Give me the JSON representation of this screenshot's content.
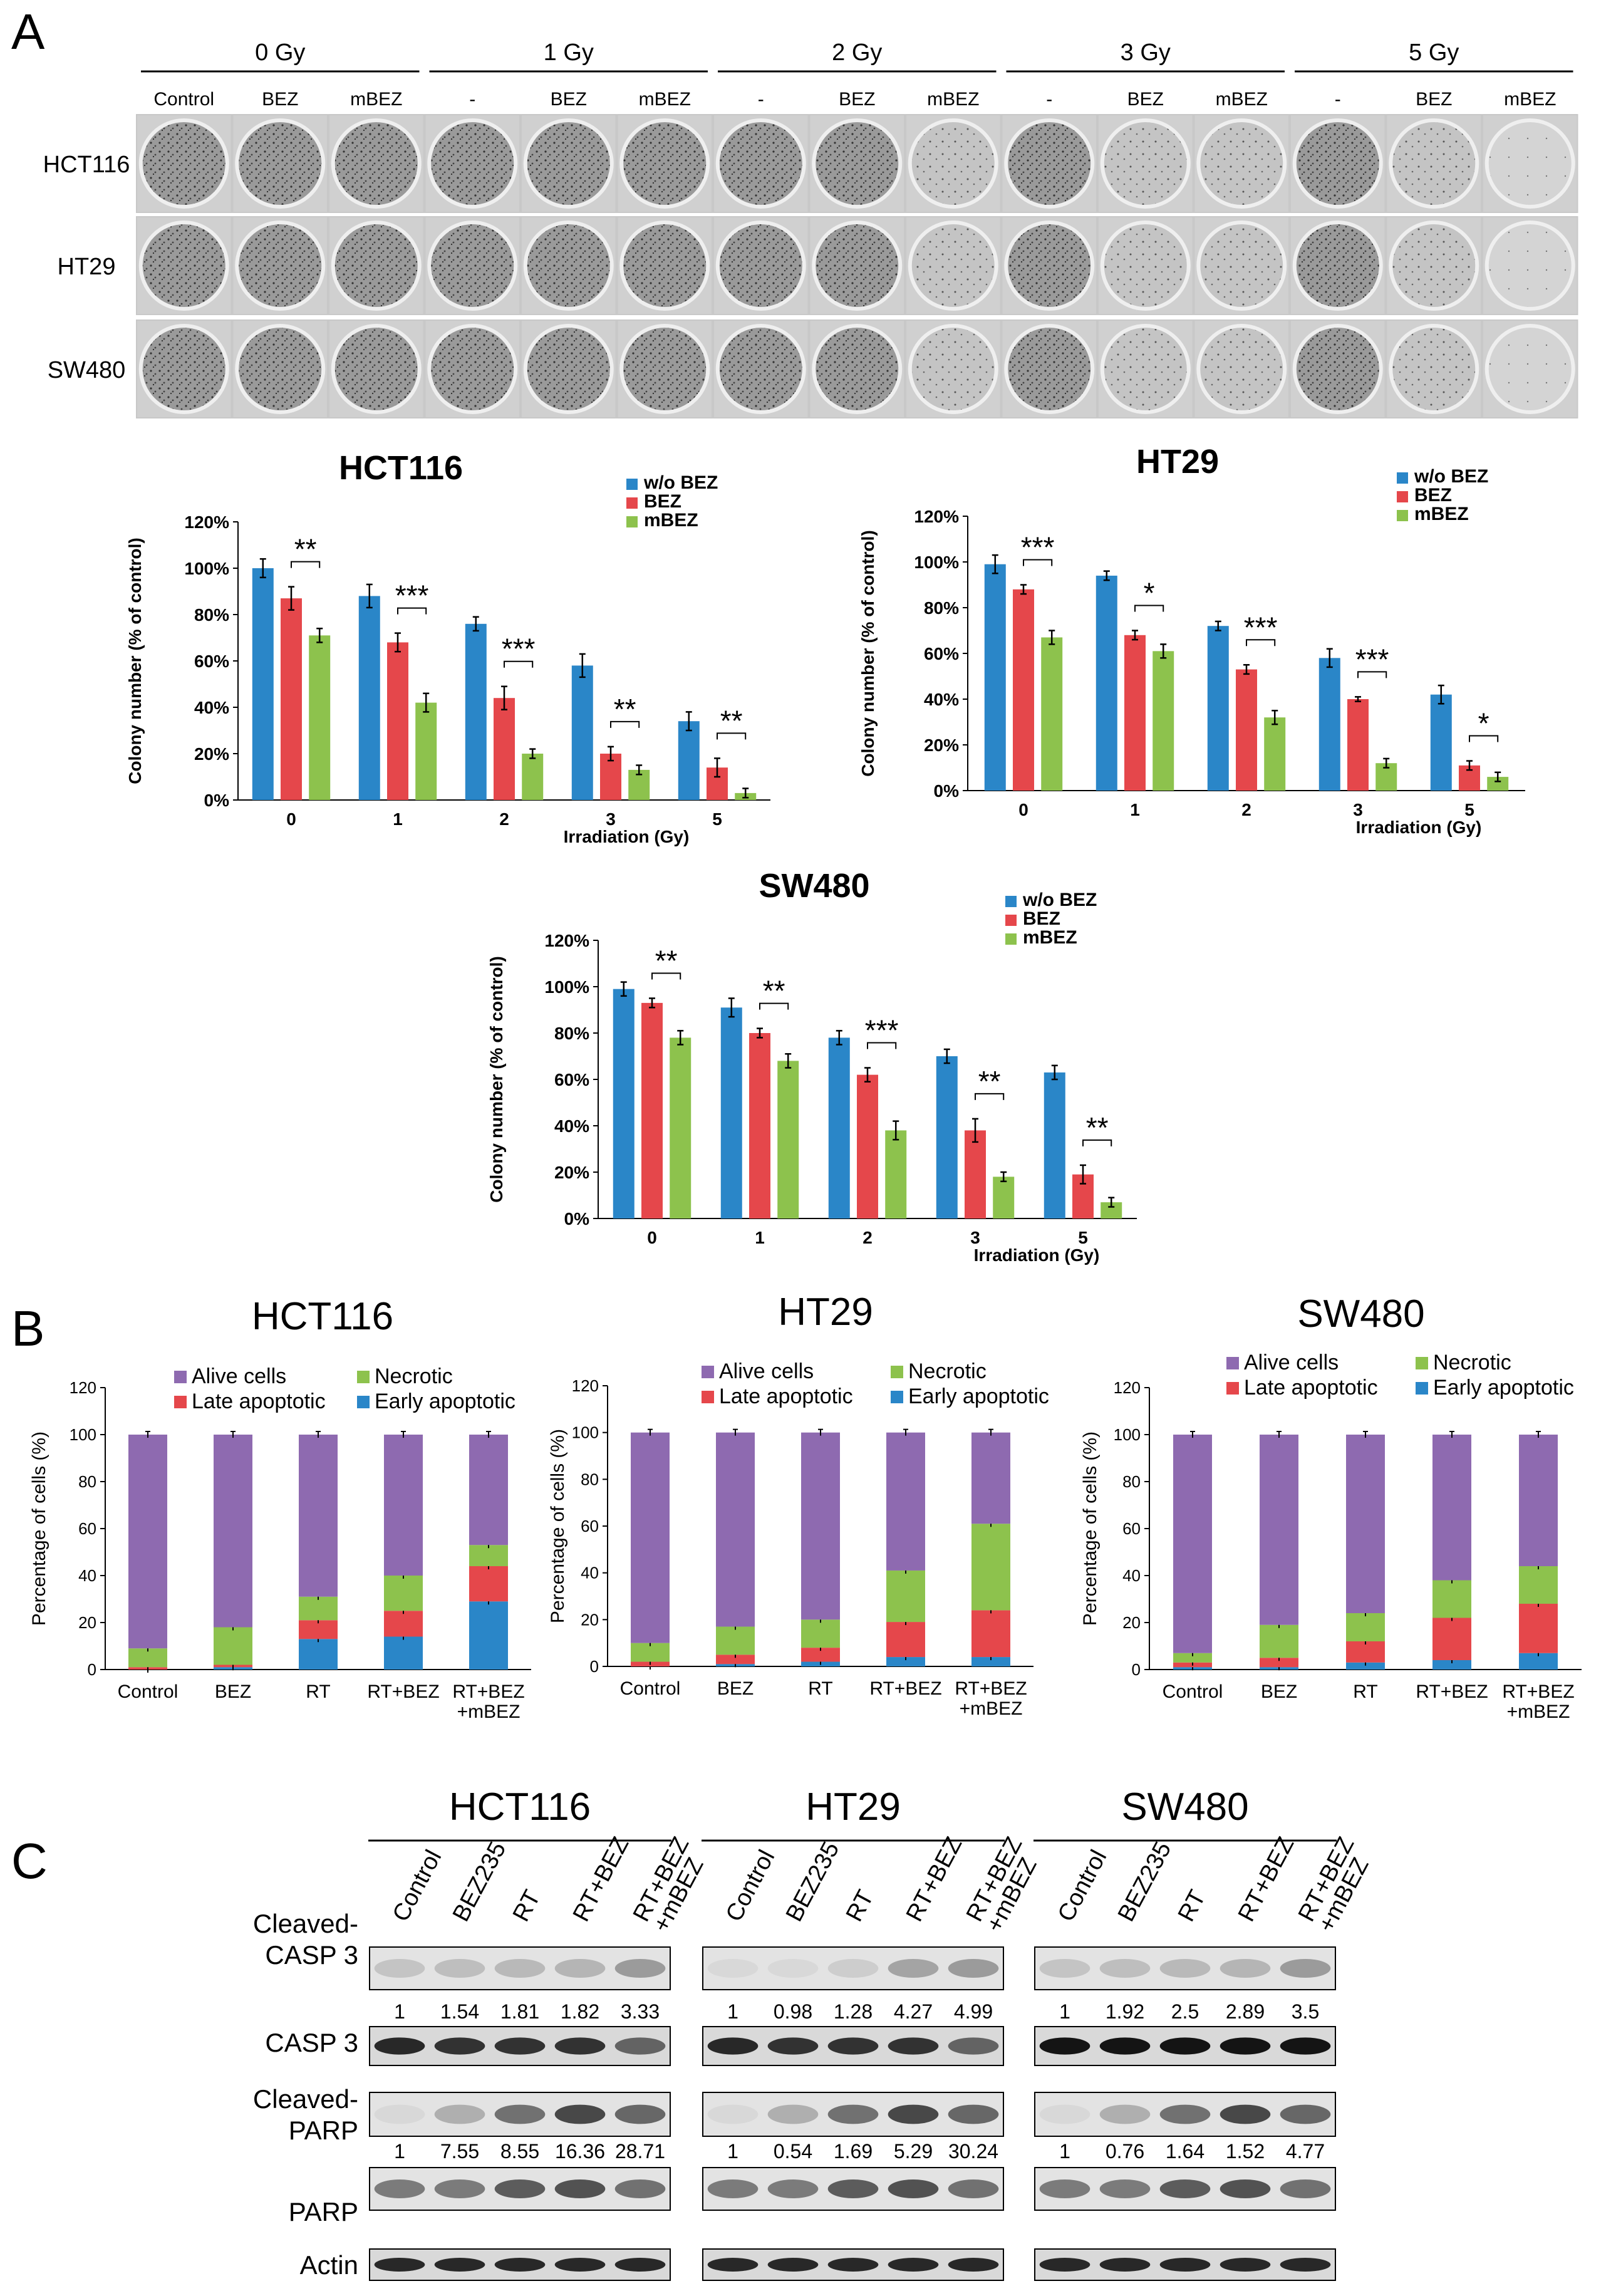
{
  "panels": {
    "a": "A",
    "b": "B",
    "c": "C"
  },
  "colors": {
    "blue": "#2a86c8",
    "red": "#e5474b",
    "green": "#8dc24d",
    "purple": "#8e6ab0",
    "dish_dark": "#5a5a5a",
    "dish_light": "#d8d8d8"
  },
  "panel_a": {
    "dose_groups": [
      "0 Gy",
      "1 Gy",
      "2 Gy",
      "3 Gy",
      "5 Gy"
    ],
    "treatments": [
      "Control",
      "BEZ",
      "mBEZ",
      "-",
      "BEZ",
      "mBEZ",
      "-",
      "BEZ",
      "mBEZ",
      "-",
      "BEZ",
      "mBEZ",
      "-",
      "BEZ",
      "mBEZ"
    ],
    "cell_lines": [
      "HCT116",
      "HT29",
      "SW480"
    ]
  },
  "chart_data": [
    {
      "id": "a1",
      "type": "bar",
      "title": "HCT116",
      "xlabel": "Irradiation (Gy)",
      "ylabel": "Colony number (% of control)",
      "categories": [
        "0",
        "1",
        "2",
        "3",
        "5"
      ],
      "yticks": [
        "0%",
        "20%",
        "40%",
        "60%",
        "80%",
        "100%",
        "120%"
      ],
      "ylim": [
        0,
        120
      ],
      "series": [
        {
          "name": "w/o BEZ",
          "color": "#2a86c8",
          "values": [
            100,
            88,
            76,
            58,
            34
          ],
          "errors": [
            4,
            5,
            3,
            5,
            4
          ]
        },
        {
          "name": "BEZ",
          "color": "#e5474b",
          "values": [
            87,
            68,
            44,
            20,
            14
          ],
          "errors": [
            5,
            4,
            5,
            3,
            4
          ]
        },
        {
          "name": "mBEZ",
          "color": "#8dc24d",
          "values": [
            71,
            42,
            20,
            13,
            3
          ],
          "errors": [
            3,
            4,
            2,
            2,
            2
          ]
        }
      ],
      "significance": [
        "**",
        "***",
        "***",
        "**",
        "**"
      ]
    },
    {
      "id": "a2",
      "type": "bar",
      "title": "HT29",
      "xlabel": "Irradiation (Gy)",
      "ylabel": "Colony number (% of control)",
      "categories": [
        "0",
        "1",
        "2",
        "3",
        "5"
      ],
      "yticks": [
        "0%",
        "20%",
        "40%",
        "60%",
        "80%",
        "100%",
        "120%"
      ],
      "ylim": [
        0,
        120
      ],
      "series": [
        {
          "name": "w/o BEZ",
          "color": "#2a86c8",
          "values": [
            99,
            94,
            72,
            58,
            42
          ],
          "errors": [
            4,
            2,
            2,
            4,
            4
          ]
        },
        {
          "name": "BEZ",
          "color": "#e5474b",
          "values": [
            88,
            68,
            53,
            40,
            11
          ],
          "errors": [
            2,
            2,
            2,
            1,
            2
          ]
        },
        {
          "name": "mBEZ",
          "color": "#8dc24d",
          "values": [
            67,
            61,
            32,
            12,
            6
          ],
          "errors": [
            3,
            3,
            3,
            2,
            2
          ]
        }
      ],
      "significance": [
        "***",
        "*",
        "***",
        "***",
        "*"
      ]
    },
    {
      "id": "a3",
      "type": "bar",
      "title": "SW480",
      "xlabel": "Irradiation (Gy)",
      "ylabel": "Colony number (% of control)",
      "categories": [
        "0",
        "1",
        "2",
        "3",
        "5"
      ],
      "yticks": [
        "0%",
        "20%",
        "40%",
        "60%",
        "80%",
        "100%",
        "120%"
      ],
      "ylim": [
        0,
        120
      ],
      "series": [
        {
          "name": "w/o BEZ",
          "color": "#2a86c8",
          "values": [
            99,
            91,
            78,
            70,
            63
          ],
          "errors": [
            3,
            4,
            3,
            3,
            3
          ]
        },
        {
          "name": "BEZ",
          "color": "#e5474b",
          "values": [
            93,
            80,
            62,
            38,
            19
          ],
          "errors": [
            2,
            2,
            3,
            5,
            4
          ]
        },
        {
          "name": "mBEZ",
          "color": "#8dc24d",
          "values": [
            78,
            68,
            38,
            18,
            7
          ],
          "errors": [
            3,
            3,
            4,
            2,
            2
          ]
        }
      ],
      "significance": [
        "**",
        "**",
        "***",
        "**",
        "**"
      ]
    },
    {
      "id": "b1",
      "type": "bar",
      "stacked": true,
      "title": "HCT116",
      "ylabel": "Percentage of cells (%)",
      "categories": [
        "Control",
        "BEZ",
        "RT",
        "RT+BEZ",
        "RT+BEZ\n+mBEZ"
      ],
      "yticks": [
        "0",
        "20",
        "40",
        "60",
        "80",
        "100",
        "120"
      ],
      "ylim": [
        0,
        120
      ],
      "series": [
        {
          "name": "Early apoptotic",
          "color": "#2a86c8",
          "values": [
            0,
            1,
            13,
            14,
            29
          ]
        },
        {
          "name": "Late apoptotic",
          "color": "#e5474b",
          "values": [
            1,
            1,
            8,
            11,
            15
          ]
        },
        {
          "name": "Necrotic",
          "color": "#8dc24d",
          "values": [
            8,
            16,
            10,
            15,
            9
          ]
        },
        {
          "name": "Alive cells",
          "color": "#8e6ab0",
          "values": [
            91,
            82,
            69,
            60,
            47
          ]
        }
      ]
    },
    {
      "id": "b2",
      "type": "bar",
      "stacked": true,
      "title": "HT29",
      "ylabel": "Percentage of cells (%)",
      "categories": [
        "Control",
        "BEZ",
        "RT",
        "RT+BEZ",
        "RT+BEZ\n+mBEZ"
      ],
      "yticks": [
        "0",
        "20",
        "40",
        "60",
        "80",
        "100",
        "120"
      ],
      "ylim": [
        0,
        120
      ],
      "series": [
        {
          "name": "Early apoptotic",
          "color": "#2a86c8",
          "values": [
            0,
            1,
            2,
            4,
            4
          ]
        },
        {
          "name": "Late apoptotic",
          "color": "#e5474b",
          "values": [
            2,
            4,
            6,
            15,
            20
          ]
        },
        {
          "name": "Necrotic",
          "color": "#8dc24d",
          "values": [
            8,
            12,
            12,
            22,
            37
          ]
        },
        {
          "name": "Alive cells",
          "color": "#8e6ab0",
          "values": [
            90,
            83,
            80,
            59,
            39
          ]
        }
      ]
    },
    {
      "id": "b3",
      "type": "bar",
      "stacked": true,
      "title": "SW480",
      "ylabel": "Percentage of cells (%)",
      "categories": [
        "Control",
        "BEZ",
        "RT",
        "RT+BEZ",
        "RT+BEZ\n+mBEZ"
      ],
      "yticks": [
        "0",
        "20",
        "40",
        "60",
        "80",
        "100",
        "120"
      ],
      "ylim": [
        0,
        120
      ],
      "series": [
        {
          "name": "Early apoptotic",
          "color": "#2a86c8",
          "values": [
            1,
            1,
            3,
            4,
            7
          ]
        },
        {
          "name": "Late apoptotic",
          "color": "#e5474b",
          "values": [
            2,
            4,
            9,
            18,
            21
          ]
        },
        {
          "name": "Necrotic",
          "color": "#8dc24d",
          "values": [
            4,
            14,
            12,
            16,
            16
          ]
        },
        {
          "name": "Alive cells",
          "color": "#8e6ab0",
          "values": [
            93,
            81,
            76,
            62,
            56
          ]
        }
      ]
    }
  ],
  "panel_c": {
    "groups": [
      "HCT116",
      "HT29",
      "SW480"
    ],
    "lanes": [
      "Control",
      "BEZ235",
      "RT",
      "RT+BEZ",
      "RT+BEZ\n+mBEZ"
    ],
    "rows": [
      "Cleaved-\nCASP 3",
      "CASP 3",
      "Cleaved-\nPARP",
      "PARP",
      "Actin"
    ],
    "quant_casp3": [
      [
        "1",
        "1.54",
        "1.81",
        "1.82",
        "3.33"
      ],
      [
        "1",
        "0.98",
        "1.28",
        "4.27",
        "4.99"
      ],
      [
        "1",
        "1.92",
        "2.5",
        "2.89",
        "3.5"
      ]
    ],
    "quant_parp": [
      [
        "1",
        "7.55",
        "8.55",
        "16.36",
        "28.71"
      ],
      [
        "1",
        "0.54",
        "1.69",
        "5.29",
        "30.24"
      ],
      [
        "1",
        "0.76",
        "1.64",
        "1.52",
        "4.77"
      ]
    ]
  }
}
